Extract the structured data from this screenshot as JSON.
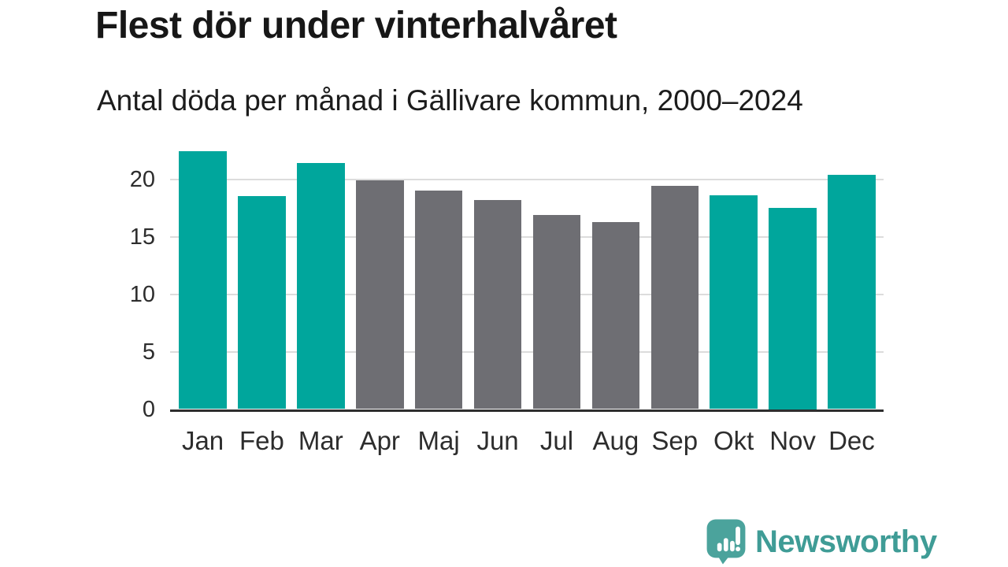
{
  "header": {
    "title": "Flest dör under vinterhalvåret",
    "subtitle": "Antal döda per månad i Gällivare kommun, 2000–2024"
  },
  "chart_data": {
    "type": "bar",
    "categories": [
      "Jan",
      "Feb",
      "Mar",
      "Apr",
      "Maj",
      "Jun",
      "Jul",
      "Aug",
      "Sep",
      "Okt",
      "Nov",
      "Dec"
    ],
    "values": [
      22.4,
      18.5,
      21.4,
      19.9,
      19.0,
      18.2,
      16.9,
      16.3,
      19.4,
      18.6,
      17.5,
      20.4
    ],
    "highlighted_categories": [
      "Jan",
      "Feb",
      "Mar",
      "Okt",
      "Nov",
      "Dec"
    ],
    "highlight_color": "#00a69c",
    "base_color": "#6e6e73",
    "title": "Flest dör under vinterhalvåret",
    "subtitle": "Antal döda per månad i Gällivare kommun, 2000–2024",
    "xlabel": "",
    "ylabel": "",
    "yticks": [
      0,
      5,
      10,
      15,
      20
    ],
    "ylim": [
      0,
      23
    ],
    "grid": "horizontal-only",
    "gridline_color": "#dcdcdc",
    "axis_line_color": "#2e2e2e",
    "legend": "none"
  },
  "footer": {
    "brand": "Newsworthy",
    "brand_color": "#3f9c96",
    "icon_color": "#4ba39c",
    "icon": "newsworthy-speech-bubble-barchart-icon"
  }
}
